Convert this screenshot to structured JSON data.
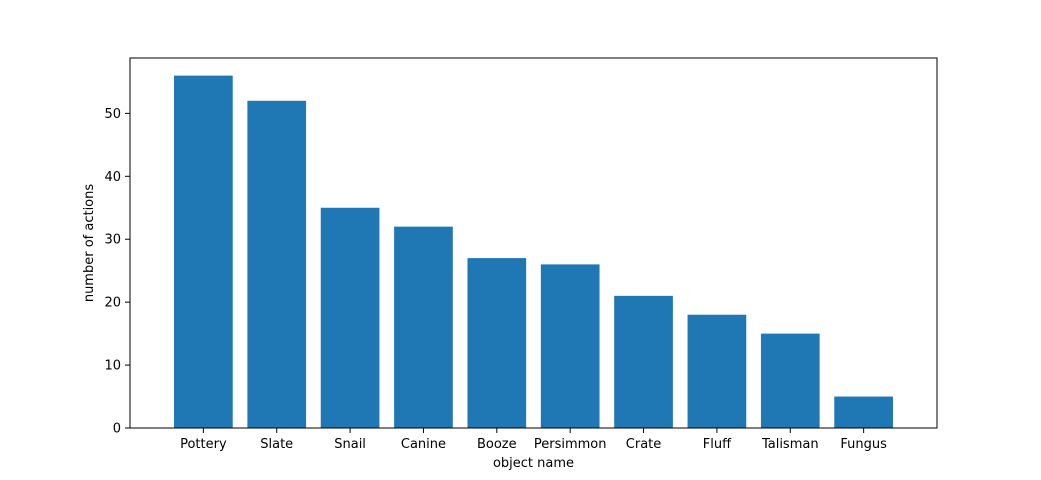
{
  "chart_data": {
    "type": "bar",
    "title": "",
    "xlabel": "object name",
    "ylabel": "number of actions",
    "categories": [
      "Pottery",
      "Slate",
      "Snail",
      "Canine",
      "Booze",
      "Persimmon",
      "Crate",
      "Fluff",
      "Talisman",
      "Fungus"
    ],
    "values": [
      56,
      52,
      35,
      32,
      27,
      26,
      21,
      18,
      15,
      5
    ],
    "ylim": [
      0,
      58.8
    ],
    "yticks": [
      0,
      10,
      20,
      30,
      40,
      50
    ],
    "grid": false,
    "bar_color": "#1f77b4"
  }
}
